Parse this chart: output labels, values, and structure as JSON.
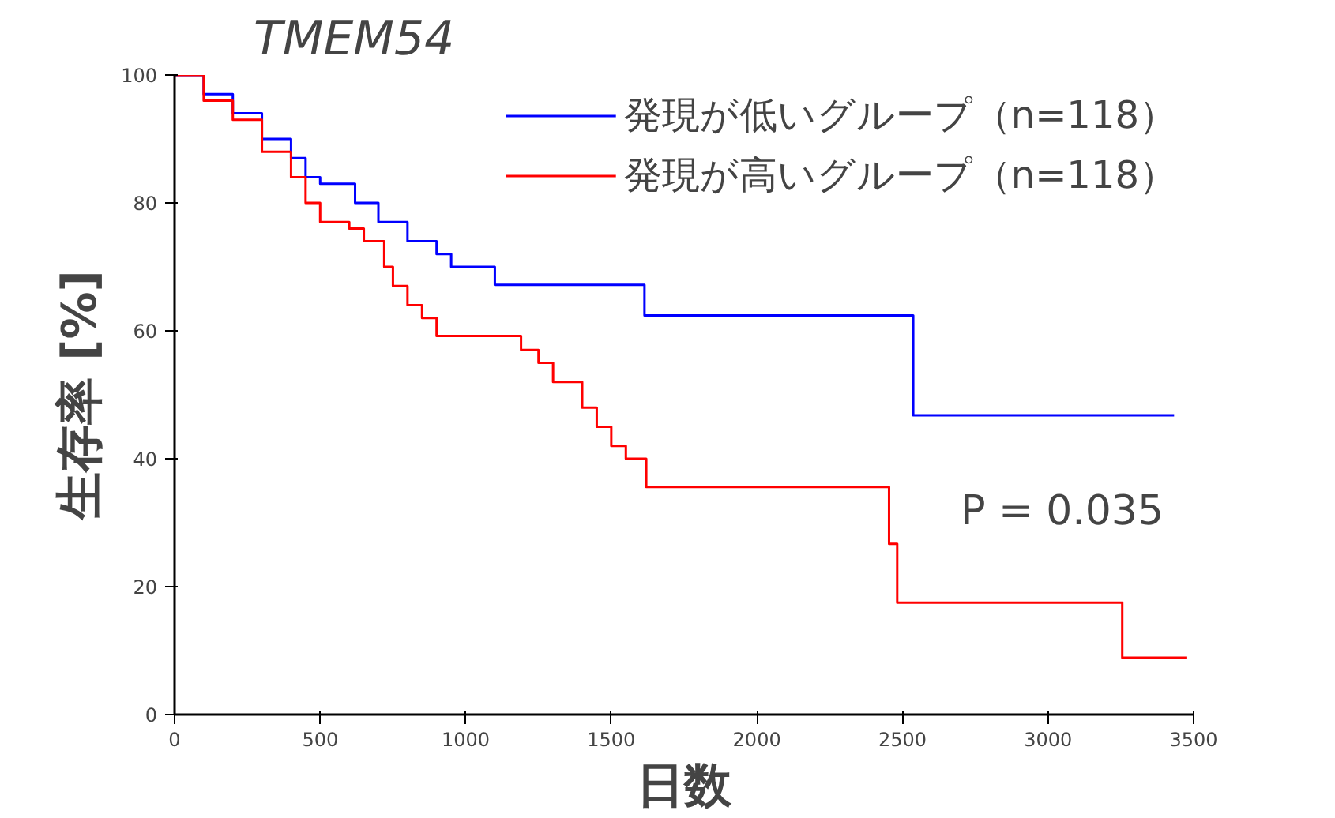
{
  "chart_data": {
    "type": "step",
    "title": "TMEM54",
    "xlabel": "日数",
    "ylabel": "生存率 [%]",
    "xlim": [
      0,
      3500
    ],
    "ylim": [
      0,
      100
    ],
    "xticks": [
      0,
      500,
      1000,
      1500,
      2000,
      2500,
      3000,
      3500
    ],
    "yticks": [
      0,
      20,
      40,
      60,
      80,
      100
    ],
    "grid": false,
    "legend": "top right",
    "marker": "none",
    "line_style": "solid",
    "annotations": [
      "P = 0.035"
    ],
    "series": [
      {
        "name": "発現が低いグループ（n=118）",
        "color": "#0000ff",
        "x": [
          0,
          100,
          200,
          300,
          400,
          450,
          500,
          620,
          700,
          800,
          900,
          950,
          1100,
          1614,
          2537,
          3433
        ],
        "values": [
          100,
          97,
          94,
          90,
          87,
          84,
          83,
          80,
          77,
          74,
          72,
          70,
          67.2,
          62.4,
          46.8,
          46.8
        ]
      },
      {
        "name": "発現が高いグループ（n=118）",
        "color": "#ff0000",
        "x": [
          0,
          100,
          200,
          300,
          400,
          450,
          500,
          600,
          650,
          720,
          750,
          800,
          850,
          900,
          1190,
          1250,
          1300,
          1400,
          1450,
          1500,
          1550,
          1620,
          1680,
          2454,
          2482,
          3255,
          3478
        ],
        "values": [
          100,
          96,
          93,
          88,
          84,
          80,
          77,
          76,
          74,
          70,
          67,
          64,
          62,
          59.2,
          57,
          55,
          52,
          48,
          45,
          42,
          40,
          35.6,
          35.6,
          26.7,
          17.5,
          8.9,
          8.9
        ]
      }
    ]
  }
}
